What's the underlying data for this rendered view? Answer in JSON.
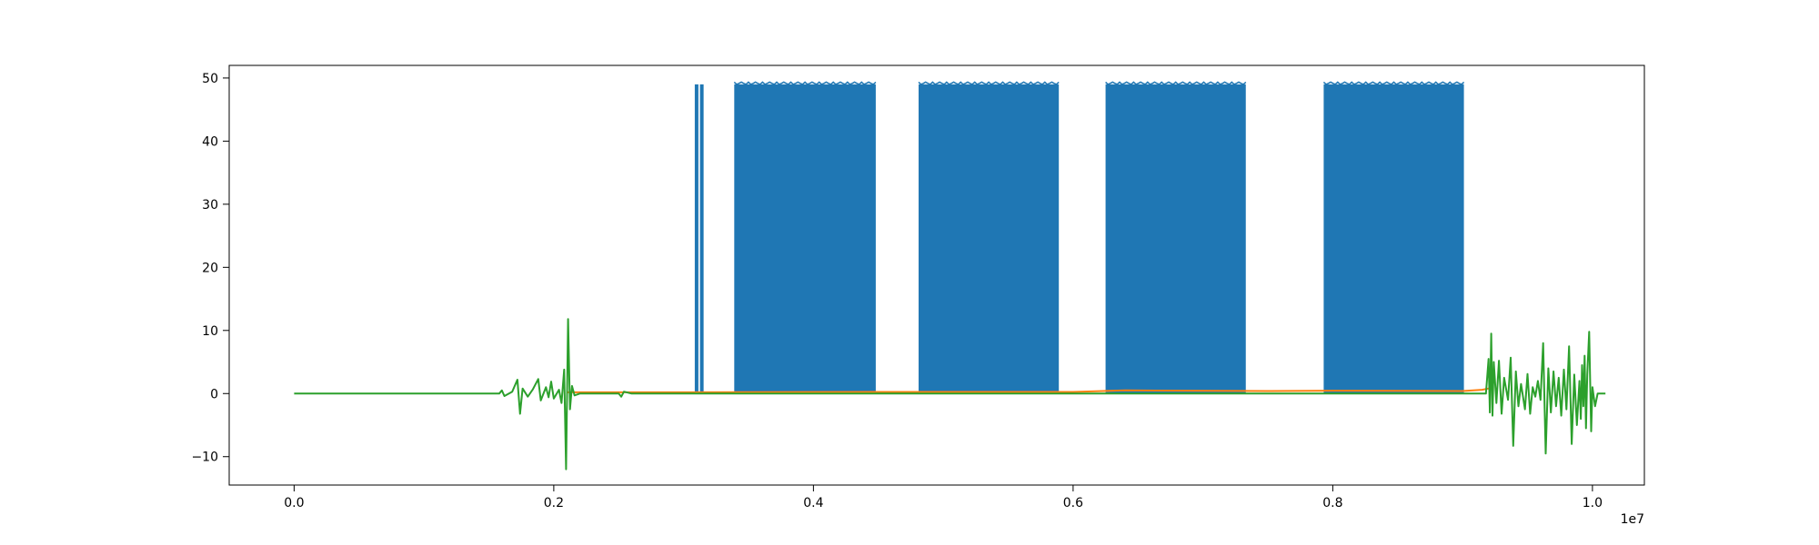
{
  "chart_data": {
    "type": "line",
    "title": "",
    "xlabel": "",
    "ylabel": "",
    "x_offset_label": "1e7",
    "xlim": [
      -0.05,
      1.04
    ],
    "ylim": [
      -14.5,
      52
    ],
    "x_ticks": [
      0.0,
      0.2,
      0.4,
      0.6,
      0.8,
      1.0
    ],
    "x_tick_labels": [
      "0.0",
      "0.2",
      "0.4",
      "0.6",
      "0.8",
      "1.0"
    ],
    "y_ticks": [
      -10,
      0,
      10,
      20,
      30,
      40,
      50
    ],
    "y_tick_labels": [
      "−10",
      "0",
      "10",
      "20",
      "30",
      "40",
      "50"
    ],
    "grid": false,
    "legend": "none",
    "series": [
      {
        "color": "#1f77b4",
        "spikes": [
          0.31,
          0.314
        ],
        "blocks": [
          [
            0.339,
            0.448
          ],
          [
            0.481,
            0.589
          ],
          [
            0.625,
            0.733
          ],
          [
            0.793,
            0.901
          ]
        ],
        "value_high": 49,
        "value_low": 0
      },
      {
        "color": "#ff7f0e",
        "points": [
          [
            0.21,
            0.2
          ],
          [
            0.3,
            0.2
          ],
          [
            0.45,
            0.25
          ],
          [
            0.6,
            0.25
          ],
          [
            0.64,
            0.5
          ],
          [
            0.75,
            0.4
          ],
          [
            0.8,
            0.45
          ],
          [
            0.9,
            0.4
          ],
          [
            0.915,
            0.6
          ],
          [
            0.92,
            0.8
          ]
        ]
      },
      {
        "color": "#2ca02c",
        "points": [
          [
            0.0,
            0
          ],
          [
            0.158,
            0
          ],
          [
            0.16,
            0.5
          ],
          [
            0.162,
            -0.4
          ],
          [
            0.168,
            0.3
          ],
          [
            0.172,
            2.2
          ],
          [
            0.174,
            -3.2
          ],
          [
            0.176,
            0.8
          ],
          [
            0.18,
            -0.5
          ],
          [
            0.184,
            0.7
          ],
          [
            0.188,
            2.3
          ],
          [
            0.19,
            -1.1
          ],
          [
            0.194,
            1.0
          ],
          [
            0.196,
            -0.6
          ],
          [
            0.198,
            1.9
          ],
          [
            0.2,
            -0.8
          ],
          [
            0.204,
            0.6
          ],
          [
            0.206,
            -1.5
          ],
          [
            0.208,
            3.8
          ],
          [
            0.2095,
            -12
          ],
          [
            0.211,
            11.8
          ],
          [
            0.2125,
            -2.5
          ],
          [
            0.214,
            1.2
          ],
          [
            0.216,
            -0.3
          ],
          [
            0.22,
            0
          ],
          [
            0.25,
            0
          ],
          [
            0.252,
            -0.5
          ],
          [
            0.254,
            0.3
          ],
          [
            0.26,
            0
          ],
          [
            0.918,
            0
          ],
          [
            0.92,
            5.5
          ],
          [
            0.921,
            -3.0
          ],
          [
            0.922,
            9.5
          ],
          [
            0.923,
            -3.5
          ],
          [
            0.924,
            5
          ],
          [
            0.926,
            -1.5
          ],
          [
            0.928,
            5.2
          ],
          [
            0.93,
            -3.2
          ],
          [
            0.932,
            2.5
          ],
          [
            0.935,
            -1
          ],
          [
            0.937,
            5.7
          ],
          [
            0.939,
            -8.3
          ],
          [
            0.941,
            3.5
          ],
          [
            0.943,
            -2
          ],
          [
            0.945,
            1.5
          ],
          [
            0.948,
            -2.5
          ],
          [
            0.95,
            3.1
          ],
          [
            0.952,
            -3.2
          ],
          [
            0.954,
            1
          ],
          [
            0.956,
            -0.5
          ],
          [
            0.958,
            2
          ],
          [
            0.96,
            -1
          ],
          [
            0.962,
            8
          ],
          [
            0.964,
            -9.5
          ],
          [
            0.966,
            4
          ],
          [
            0.968,
            -3
          ],
          [
            0.97,
            3.5
          ],
          [
            0.972,
            -2
          ],
          [
            0.974,
            2.5
          ],
          [
            0.976,
            -3.5
          ],
          [
            0.978,
            3.8
          ],
          [
            0.98,
            -2.5
          ],
          [
            0.982,
            7.5
          ],
          [
            0.984,
            -8
          ],
          [
            0.986,
            3
          ],
          [
            0.988,
            -5
          ],
          [
            0.99,
            2
          ],
          [
            0.991,
            -4
          ],
          [
            0.992,
            4.5
          ],
          [
            0.993,
            -2
          ],
          [
            0.994,
            6
          ],
          [
            0.995,
            -5.5
          ],
          [
            0.996,
            3
          ],
          [
            0.9975,
            9.8
          ],
          [
            0.999,
            -6
          ],
          [
            1.0,
            1
          ],
          [
            1.002,
            -2
          ],
          [
            1.004,
            0
          ],
          [
            1.01,
            0
          ]
        ]
      }
    ]
  }
}
